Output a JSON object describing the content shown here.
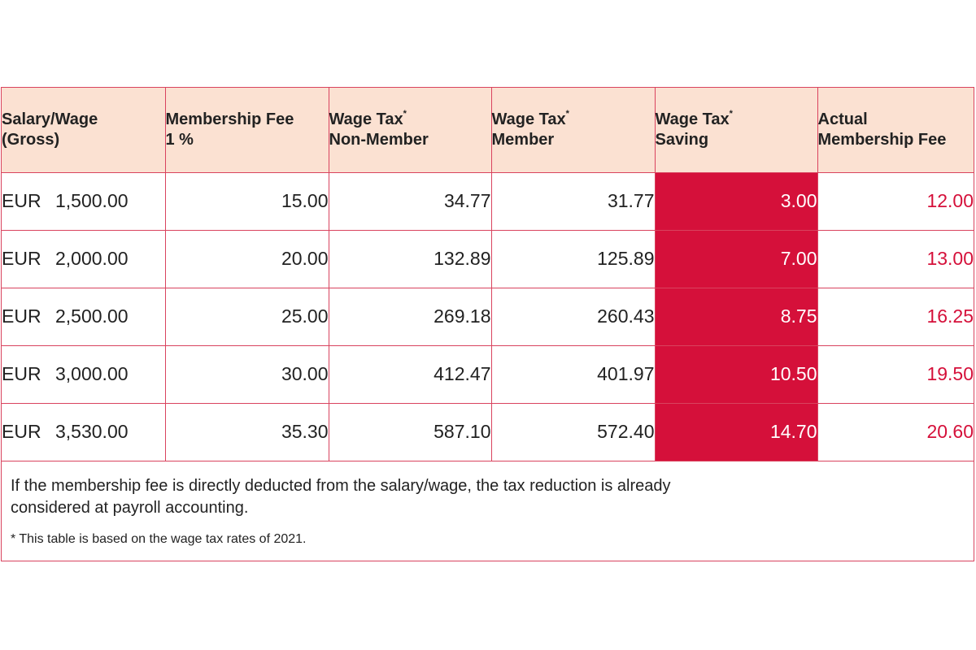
{
  "table": {
    "headers": [
      {
        "line1": "Salary/Wage",
        "sup": "",
        "line2": "(Gross)"
      },
      {
        "line1": "Membership Fee",
        "sup": "",
        "line2": "1 %"
      },
      {
        "line1": "Wage Tax",
        "sup": "*",
        "line2": "Non-Member"
      },
      {
        "line1": "Wage Tax",
        "sup": "*",
        "line2": "Member"
      },
      {
        "line1": "Wage Tax",
        "sup": "*",
        "line2": "Saving"
      },
      {
        "line1": "Actual",
        "sup": "",
        "line2": "Membership Fee"
      }
    ],
    "rows": [
      {
        "currency": "EUR",
        "salary": "1,500.00",
        "fee": "15.00",
        "tax_non_member": "34.77",
        "tax_member": "31.77",
        "saving": "3.00",
        "actual_fee": "12.00"
      },
      {
        "currency": "EUR",
        "salary": "2,000.00",
        "fee": "20.00",
        "tax_non_member": "132.89",
        "tax_member": "125.89",
        "saving": "7.00",
        "actual_fee": "13.00"
      },
      {
        "currency": "EUR",
        "salary": "2,500.00",
        "fee": "25.00",
        "tax_non_member": "269.18",
        "tax_member": "260.43",
        "saving": "8.75",
        "actual_fee": "16.25"
      },
      {
        "currency": "EUR",
        "salary": "3,000.00",
        "fee": "30.00",
        "tax_non_member": "412.47",
        "tax_member": "401.97",
        "saving": "10.50",
        "actual_fee": "19.50"
      },
      {
        "currency": "EUR",
        "salary": "3,530.00",
        "fee": "35.30",
        "tax_non_member": "587.10",
        "tax_member": "572.40",
        "saving": "14.70",
        "actual_fee": "20.60"
      }
    ]
  },
  "notes": {
    "main": "If the membership fee is directly deducted from the salary/wage, the tax reduction is already considered at payroll accounting.",
    "footnote": "* This table is based on the wage tax rates of 2021."
  },
  "colors": {
    "border": "#d9435e",
    "header_bg": "#fbe1d2",
    "highlight_bg": "#d5103a",
    "highlight_text": "#ffffff",
    "accent_text": "#d5103a"
  }
}
